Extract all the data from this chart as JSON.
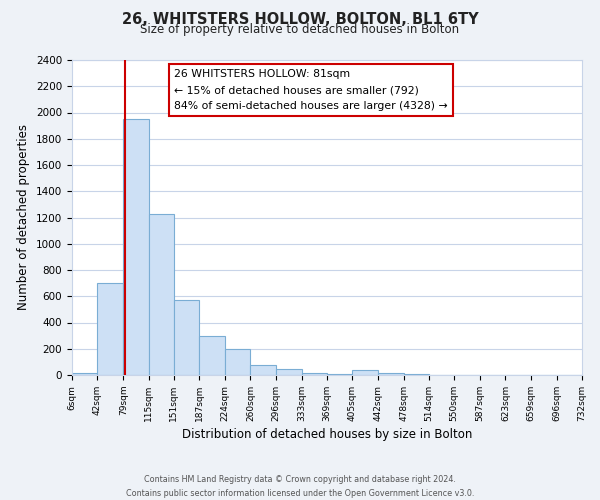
{
  "title": "26, WHITSTERS HOLLOW, BOLTON, BL1 6TY",
  "subtitle": "Size of property relative to detached houses in Bolton",
  "xlabel": "Distribution of detached houses by size in Bolton",
  "ylabel": "Number of detached properties",
  "bar_color": "#cde0f5",
  "bar_edge_color": "#7aadd4",
  "bin_edges": [
    6,
    42,
    79,
    115,
    151,
    187,
    224,
    260,
    296,
    333,
    369,
    405,
    442,
    478,
    514,
    550,
    587,
    623,
    659,
    696,
    732
  ],
  "bin_labels": [
    "6sqm",
    "42sqm",
    "79sqm",
    "115sqm",
    "151sqm",
    "187sqm",
    "224sqm",
    "260sqm",
    "296sqm",
    "333sqm",
    "369sqm",
    "405sqm",
    "442sqm",
    "478sqm",
    "514sqm",
    "550sqm",
    "587sqm",
    "623sqm",
    "659sqm",
    "696sqm",
    "732sqm"
  ],
  "counts": [
    15,
    700,
    1950,
    1230,
    575,
    300,
    200,
    80,
    45,
    15,
    5,
    35,
    15,
    5,
    2,
    2,
    2,
    2,
    2,
    2
  ],
  "property_size": 81,
  "pct_smaller": 15,
  "n_smaller": 792,
  "pct_larger_semi": 84,
  "n_larger_semi": 4328,
  "vline_color": "#cc0000",
  "annotation_box_edge": "#cc0000",
  "ylim": [
    0,
    2400
  ],
  "yticks": [
    0,
    200,
    400,
    600,
    800,
    1000,
    1200,
    1400,
    1600,
    1800,
    2000,
    2200,
    2400
  ],
  "footer_line1": "Contains HM Land Registry data © Crown copyright and database right 2024.",
  "footer_line2": "Contains public sector information licensed under the Open Government Licence v3.0.",
  "background_color": "#eef2f7",
  "plot_background": "#ffffff",
  "grid_color": "#c8d4e8"
}
